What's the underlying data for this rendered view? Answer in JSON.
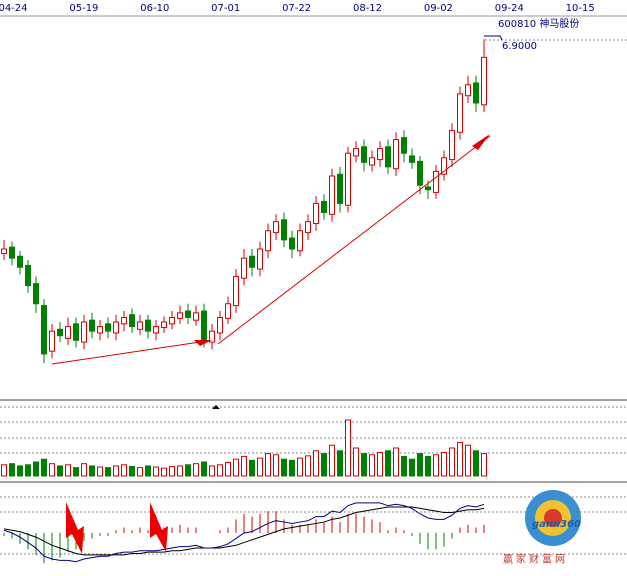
{
  "chart_data": {
    "type": "candlestick",
    "title": "600810 神马股份",
    "high_label": "6.9000",
    "x_labels": [
      "04-24",
      "05-19",
      "06-10",
      "07-01",
      "07-22",
      "08-12",
      "09-02",
      "09-24",
      "10-15"
    ],
    "ylim": [
      3.0,
      7.0
    ],
    "open": [
      4.55,
      4.62,
      4.52,
      4.42,
      4.22,
      3.98,
      3.48,
      3.72,
      3.62,
      3.78,
      3.58,
      3.82,
      3.68,
      3.78,
      3.68,
      3.78,
      3.88,
      3.72,
      3.82,
      3.68,
      3.74,
      3.78,
      3.84,
      3.92,
      3.82,
      3.92,
      3.58,
      3.68,
      3.84,
      3.98,
      4.28,
      4.52,
      4.38,
      4.58,
      4.78,
      4.92,
      4.72,
      4.58,
      4.78,
      4.88,
      5.12,
      4.98,
      5.42,
      5.08,
      5.62,
      5.72,
      5.52,
      5.58,
      5.72,
      5.48,
      5.82,
      5.62,
      5.56,
      5.28,
      5.22,
      5.42,
      5.58,
      5.88,
      6.28,
      6.42,
      6.18
    ],
    "high": [
      4.7,
      4.68,
      4.58,
      4.48,
      4.3,
      4.05,
      3.78,
      3.8,
      3.85,
      3.85,
      3.88,
      3.9,
      3.82,
      3.85,
      3.88,
      3.92,
      3.95,
      3.88,
      3.88,
      3.82,
      3.86,
      3.92,
      3.98,
      4.0,
      3.98,
      4.0,
      3.78,
      3.92,
      4.08,
      4.38,
      4.6,
      4.6,
      4.68,
      4.88,
      4.98,
      5.0,
      4.8,
      4.88,
      4.98,
      5.18,
      5.2,
      5.48,
      5.5,
      5.72,
      5.78,
      5.8,
      5.68,
      5.78,
      5.8,
      5.88,
      5.9,
      5.7,
      5.62,
      5.35,
      5.52,
      5.68,
      5.98,
      6.38,
      6.5,
      6.5,
      6.9
    ],
    "low": [
      4.48,
      4.42,
      4.32,
      4.12,
      3.9,
      3.35,
      3.4,
      3.58,
      3.55,
      3.52,
      3.5,
      3.62,
      3.6,
      3.62,
      3.6,
      3.7,
      3.68,
      3.66,
      3.62,
      3.6,
      3.68,
      3.72,
      3.78,
      3.78,
      3.76,
      3.52,
      3.5,
      3.6,
      3.78,
      3.9,
      4.2,
      4.3,
      4.3,
      4.5,
      4.7,
      4.62,
      4.5,
      4.52,
      4.7,
      4.8,
      4.92,
      4.9,
      5.0,
      5.0,
      5.55,
      5.45,
      5.45,
      5.5,
      5.42,
      5.4,
      5.55,
      5.48,
      5.2,
      5.15,
      5.15,
      5.35,
      5.5,
      5.8,
      6.2,
      6.1,
      6.1
    ],
    "close": [
      4.6,
      4.5,
      4.4,
      4.2,
      4.0,
      3.45,
      3.7,
      3.65,
      3.75,
      3.6,
      3.8,
      3.7,
      3.75,
      3.7,
      3.8,
      3.85,
      3.75,
      3.8,
      3.7,
      3.75,
      3.8,
      3.85,
      3.9,
      3.85,
      3.9,
      3.6,
      3.7,
      3.85,
      4.0,
      4.3,
      4.5,
      4.4,
      4.6,
      4.8,
      4.9,
      4.7,
      4.6,
      4.8,
      4.9,
      5.1,
      5.0,
      5.4,
      5.1,
      5.65,
      5.7,
      5.55,
      5.6,
      5.7,
      5.5,
      5.8,
      5.65,
      5.55,
      5.3,
      5.25,
      5.45,
      5.6,
      5.9,
      6.3,
      6.4,
      6.2,
      6.7
    ],
    "up_color": "#e00000",
    "down_color": "#008000",
    "volume": {
      "ylim": [
        0,
        100
      ],
      "values": [
        20,
        22,
        18,
        20,
        25,
        30,
        22,
        18,
        20,
        15,
        22,
        18,
        16,
        15,
        18,
        20,
        17,
        15,
        18,
        16,
        14,
        17,
        18,
        20,
        22,
        25,
        18,
        20,
        24,
        30,
        35,
        28,
        32,
        40,
        38,
        30,
        28,
        32,
        36,
        45,
        40,
        55,
        45,
        100,
        50,
        40,
        38,
        42,
        45,
        50,
        35,
        30,
        40,
        35,
        38,
        42,
        50,
        60,
        55,
        45,
        40
      ]
    },
    "macd": {
      "ylim": [
        -0.3,
        0.3
      ],
      "dif_color": "#000080",
      "dea_color": "#000000",
      "dif": [
        0.02,
        0.0,
        -0.03,
        -0.07,
        -0.11,
        -0.17,
        -0.19,
        -0.2,
        -0.2,
        -0.21,
        -0.19,
        -0.18,
        -0.17,
        -0.17,
        -0.15,
        -0.14,
        -0.14,
        -0.13,
        -0.13,
        -0.13,
        -0.12,
        -0.11,
        -0.1,
        -0.1,
        -0.09,
        -0.11,
        -0.11,
        -0.1,
        -0.08,
        -0.04,
        0.0,
        0.01,
        0.04,
        0.07,
        0.09,
        0.08,
        0.07,
        0.08,
        0.09,
        0.12,
        0.12,
        0.16,
        0.15,
        0.2,
        0.22,
        0.22,
        0.22,
        0.22,
        0.2,
        0.21,
        0.2,
        0.18,
        0.14,
        0.11,
        0.1,
        0.1,
        0.13,
        0.18,
        0.2,
        0.19,
        0.21
      ],
      "dea": [
        0.03,
        0.02,
        0.01,
        -0.01,
        -0.03,
        -0.06,
        -0.09,
        -0.11,
        -0.13,
        -0.15,
        -0.16,
        -0.16,
        -0.16,
        -0.16,
        -0.16,
        -0.16,
        -0.15,
        -0.15,
        -0.14,
        -0.14,
        -0.14,
        -0.13,
        -0.13,
        -0.12,
        -0.11,
        -0.11,
        -0.11,
        -0.11,
        -0.1,
        -0.09,
        -0.07,
        -0.05,
        -0.03,
        -0.01,
        0.01,
        0.03,
        0.04,
        0.05,
        0.06,
        0.07,
        0.08,
        0.1,
        0.11,
        0.13,
        0.15,
        0.16,
        0.17,
        0.18,
        0.19,
        0.19,
        0.19,
        0.19,
        0.18,
        0.17,
        0.16,
        0.15,
        0.15,
        0.16,
        0.17,
        0.17,
        0.18
      ],
      "hist": [
        -0.02,
        -0.04,
        -0.08,
        -0.12,
        -0.16,
        -0.22,
        -0.2,
        -0.18,
        -0.14,
        -0.12,
        -0.06,
        -0.04,
        -0.02,
        -0.02,
        0.02,
        0.04,
        0.02,
        0.04,
        0.02,
        0.02,
        0.04,
        0.04,
        0.06,
        0.04,
        0.04,
        0,
        0,
        0.02,
        0.04,
        0.1,
        0.14,
        0.12,
        0.14,
        0.16,
        0.16,
        0.1,
        0.06,
        0.06,
        0.06,
        0.1,
        0.08,
        0.12,
        0.08,
        0.14,
        0.14,
        0.12,
        0.1,
        0.08,
        0.02,
        0.04,
        0.02,
        -0.02,
        -0.08,
        -0.12,
        -0.12,
        -0.1,
        -0.04,
        0.04,
        0.06,
        0.04,
        0.06
      ]
    },
    "watermark": {
      "logo": "gann360",
      "site": "赢家财富网"
    }
  }
}
